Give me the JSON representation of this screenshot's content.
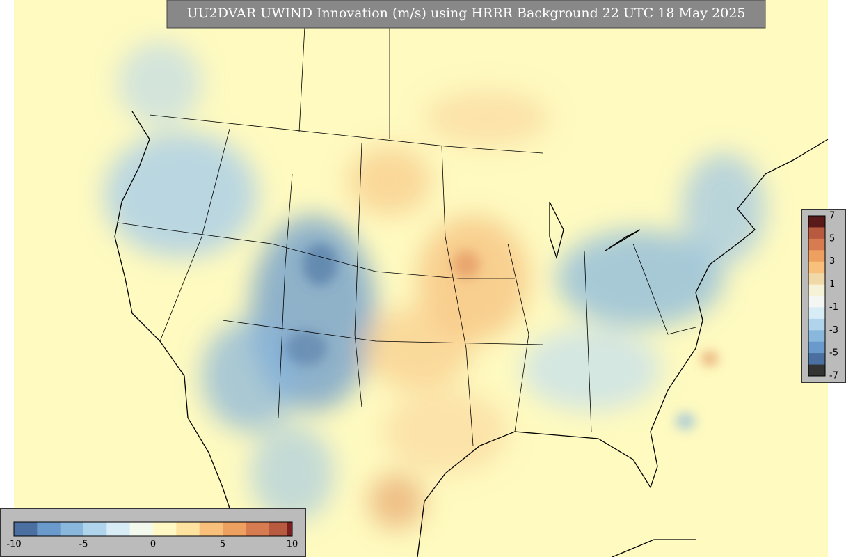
{
  "header": {
    "title": "UU2DVAR UWIND Innovation (m/s) using HRRR Background 22 UTC 18 May 2025"
  },
  "colorbar_bottom": {
    "labels": [
      "-10",
      "-5",
      "0",
      "5",
      "10"
    ]
  },
  "colorbar_right": {
    "labels": [
      "7",
      "5",
      "3",
      "1",
      "-1",
      "-3",
      "-5",
      "-7"
    ]
  }
}
